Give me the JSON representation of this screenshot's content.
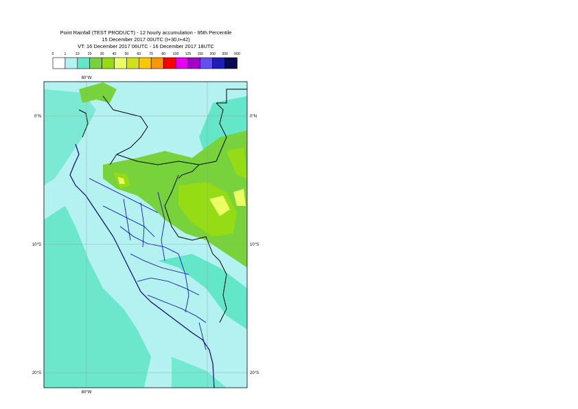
{
  "titles": {
    "line1": "Point Rainfall (TEST PRODUCT) - 12 hourly accumulation - 95th Percentile",
    "line2": "15 December 2017 00UTC (t+30,t+42)",
    "line3": "VT: 16 December 2017 06UTC - 16 December 2017 18UTC"
  },
  "legend": {
    "thresholds": [
      "0",
      "1",
      "10",
      "20",
      "30",
      "40",
      "50",
      "60",
      "70",
      "80",
      "100",
      "125",
      "150",
      "200",
      "300",
      "500"
    ],
    "colors": [
      "#ffffff",
      "#b4f2f2",
      "#64e6c8",
      "#78d23c",
      "#96dc14",
      "#ebff64",
      "#d2e11e",
      "#fac800",
      "#fa9600",
      "#fa0000",
      "#e600f0",
      "#a000c8",
      "#6450f0",
      "#1e1eb4",
      "#0a0a50"
    ]
  },
  "map_labels": {
    "lon_top": "80°W",
    "lon_bottom": "80°W",
    "lat_0_left": "0°N",
    "lat_0_right": "0°N",
    "lat_10_left": "10°S",
    "lat_10_right": "10°S",
    "lat_20_left": "20°S",
    "lat_20_right": "20°S"
  }
}
